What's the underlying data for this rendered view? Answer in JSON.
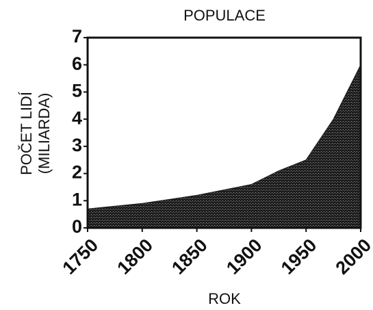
{
  "chart_data": {
    "type": "area",
    "title": "POPULACE",
    "xlabel": "ROK",
    "ylabel": [
      "POČET LIDÍ",
      "(MILIARDA)"
    ],
    "x": [
      1750,
      1800,
      1850,
      1900,
      1925,
      1950,
      1975,
      2000
    ],
    "values": [
      0.7,
      0.9,
      1.2,
      1.6,
      2.1,
      2.5,
      4.0,
      6.0
    ],
    "color": "#1c1c1c",
    "xlim": [
      1750,
      2000
    ],
    "xticks": [
      1750,
      1800,
      1850,
      1900,
      1950,
      2000
    ],
    "ylim": [
      0,
      7
    ],
    "yticks": [
      0,
      1,
      2,
      3,
      4,
      5,
      6,
      7
    ]
  }
}
